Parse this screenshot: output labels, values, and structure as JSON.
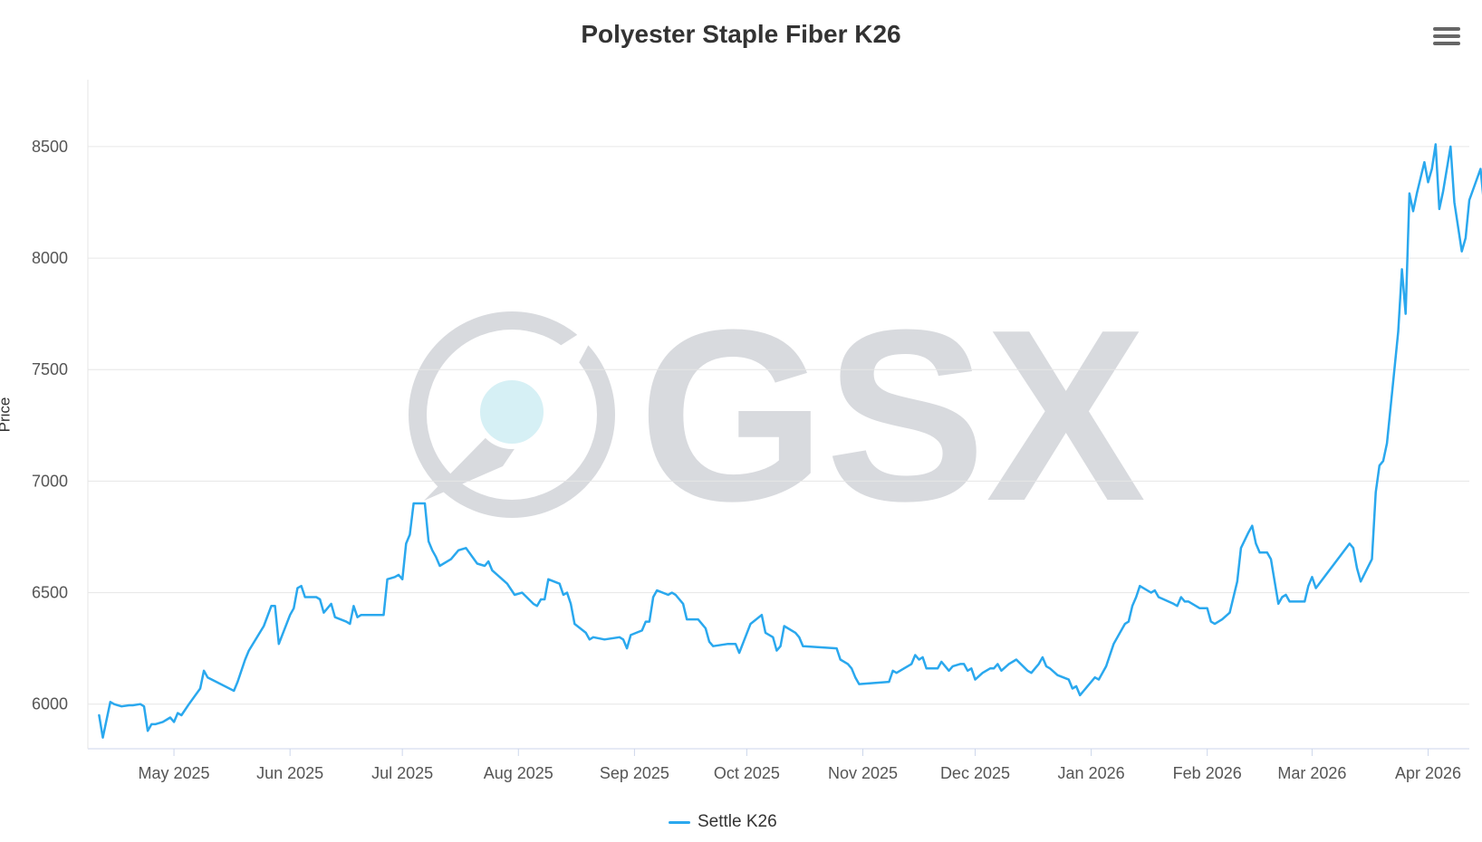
{
  "menu": {
    "icon": "hamburger-menu-icon"
  },
  "chart_data": {
    "type": "line",
    "title": "Polyester Staple Fiber K26",
    "ylabel": "Price",
    "xlabel": "",
    "ylim": [
      5800,
      8800
    ],
    "yticks": [
      6000,
      6500,
      7000,
      7500,
      8000,
      8500
    ],
    "xlim": [
      "2025-04-08",
      "2026-04-12"
    ],
    "xticks": [
      {
        "date": "2025-05-01",
        "label": "May 2025"
      },
      {
        "date": "2025-06-01",
        "label": "Jun 2025"
      },
      {
        "date": "2025-07-01",
        "label": "Jul 2025"
      },
      {
        "date": "2025-08-01",
        "label": "Aug 2025"
      },
      {
        "date": "2025-09-01",
        "label": "Sep 2025"
      },
      {
        "date": "2025-10-01",
        "label": "Oct 2025"
      },
      {
        "date": "2025-11-01",
        "label": "Nov 2025"
      },
      {
        "date": "2025-12-01",
        "label": "Dec 2025"
      },
      {
        "date": "2026-01-01",
        "label": "Jan 2026"
      },
      {
        "date": "2026-02-01",
        "label": "Feb 2026"
      },
      {
        "date": "2026-03-01",
        "label": "Mar 2026"
      },
      {
        "date": "2026-04-01",
        "label": "Apr 2026"
      }
    ],
    "grid": true,
    "legend": "bottom-center",
    "watermark": "GSX",
    "colors": {
      "line": "#2aa8ee",
      "grid": "#e6e6e6",
      "axis": "#ccd6eb",
      "watermark": "#d8dade",
      "watermark_dot": "#d6f0f5"
    },
    "series": [
      {
        "name": "Settle K26",
        "points": [
          [
            "2025-04-11",
            5950
          ],
          [
            "2025-04-12",
            5850
          ],
          [
            "2025-04-14",
            6010
          ],
          [
            "2025-04-15",
            6000
          ],
          [
            "2025-04-17",
            5990
          ],
          [
            "2025-04-19",
            5995
          ],
          [
            "2025-04-20",
            5995
          ],
          [
            "2025-04-22",
            6000
          ],
          [
            "2025-04-23",
            5990
          ],
          [
            "2025-04-24",
            5880
          ],
          [
            "2025-04-25",
            5910
          ],
          [
            "2025-04-26",
            5910
          ],
          [
            "2025-04-28",
            5920
          ],
          [
            "2025-04-29",
            5930
          ],
          [
            "2025-04-30",
            5940
          ],
          [
            "2025-05-01",
            5920
          ],
          [
            "2025-05-02",
            5960
          ],
          [
            "2025-05-03",
            5950
          ],
          [
            "2025-05-05",
            6000
          ],
          [
            "2025-05-08",
            6070
          ],
          [
            "2025-05-09",
            6150
          ],
          [
            "2025-05-10",
            6120
          ],
          [
            "2025-05-17",
            6060
          ],
          [
            "2025-05-18",
            6100
          ],
          [
            "2025-05-20",
            6200
          ],
          [
            "2025-05-21",
            6240
          ],
          [
            "2025-05-25",
            6350
          ],
          [
            "2025-05-27",
            6440
          ],
          [
            "2025-05-28",
            6440
          ],
          [
            "2025-05-29",
            6270
          ],
          [
            "2025-06-01",
            6400
          ],
          [
            "2025-06-02",
            6430
          ],
          [
            "2025-06-03",
            6520
          ],
          [
            "2025-06-04",
            6530
          ],
          [
            "2025-06-05",
            6480
          ],
          [
            "2025-06-08",
            6480
          ],
          [
            "2025-06-09",
            6470
          ],
          [
            "2025-06-10",
            6410
          ],
          [
            "2025-06-12",
            6450
          ],
          [
            "2025-06-13",
            6390
          ],
          [
            "2025-06-16",
            6370
          ],
          [
            "2025-06-17",
            6360
          ],
          [
            "2025-06-18",
            6440
          ],
          [
            "2025-06-19",
            6390
          ],
          [
            "2025-06-20",
            6400
          ],
          [
            "2025-06-22",
            6400
          ],
          [
            "2025-06-26",
            6400
          ],
          [
            "2025-06-27",
            6560
          ],
          [
            "2025-06-29",
            6570
          ],
          [
            "2025-06-30",
            6580
          ],
          [
            "2025-07-01",
            6560
          ],
          [
            "2025-07-02",
            6720
          ],
          [
            "2025-07-03",
            6760
          ],
          [
            "2025-07-04",
            6900
          ],
          [
            "2025-07-07",
            6900
          ],
          [
            "2025-07-08",
            6730
          ],
          [
            "2025-07-09",
            6690
          ],
          [
            "2025-07-10",
            6660
          ],
          [
            "2025-07-11",
            6620
          ],
          [
            "2025-07-14",
            6650
          ],
          [
            "2025-07-15",
            6670
          ],
          [
            "2025-07-16",
            6690
          ],
          [
            "2025-07-18",
            6700
          ],
          [
            "2025-07-21",
            6630
          ],
          [
            "2025-07-23",
            6620
          ],
          [
            "2025-07-24",
            6640
          ],
          [
            "2025-07-25",
            6600
          ],
          [
            "2025-07-29",
            6540
          ],
          [
            "2025-07-31",
            6490
          ],
          [
            "2025-08-02",
            6500
          ],
          [
            "2025-08-05",
            6450
          ],
          [
            "2025-08-06",
            6440
          ],
          [
            "2025-08-07",
            6470
          ],
          [
            "2025-08-08",
            6470
          ],
          [
            "2025-08-09",
            6560
          ],
          [
            "2025-08-12",
            6540
          ],
          [
            "2025-08-13",
            6490
          ],
          [
            "2025-08-14",
            6500
          ],
          [
            "2025-08-15",
            6450
          ],
          [
            "2025-08-16",
            6360
          ],
          [
            "2025-08-19",
            6320
          ],
          [
            "2025-08-20",
            6290
          ],
          [
            "2025-08-21",
            6300
          ],
          [
            "2025-08-24",
            6290
          ],
          [
            "2025-08-28",
            6300
          ],
          [
            "2025-08-29",
            6290
          ],
          [
            "2025-08-30",
            6250
          ],
          [
            "2025-08-31",
            6310
          ],
          [
            "2025-09-03",
            6330
          ],
          [
            "2025-09-04",
            6370
          ],
          [
            "2025-09-05",
            6370
          ],
          [
            "2025-09-06",
            6480
          ],
          [
            "2025-09-07",
            6510
          ],
          [
            "2025-09-10",
            6490
          ],
          [
            "2025-09-11",
            6500
          ],
          [
            "2025-09-12",
            6490
          ],
          [
            "2025-09-14",
            6450
          ],
          [
            "2025-09-15",
            6380
          ],
          [
            "2025-09-18",
            6380
          ],
          [
            "2025-09-19",
            6360
          ],
          [
            "2025-09-20",
            6340
          ],
          [
            "2025-09-21",
            6280
          ],
          [
            "2025-09-22",
            6260
          ],
          [
            "2025-09-26",
            6270
          ],
          [
            "2025-09-27",
            6270
          ],
          [
            "2025-09-28",
            6270
          ],
          [
            "2025-09-29",
            6230
          ],
          [
            "2025-10-02",
            6360
          ],
          [
            "2025-10-05",
            6400
          ],
          [
            "2025-10-06",
            6320
          ],
          [
            "2025-10-08",
            6300
          ],
          [
            "2025-10-09",
            6240
          ],
          [
            "2025-10-10",
            6260
          ],
          [
            "2025-10-11",
            6350
          ],
          [
            "2025-10-14",
            6320
          ],
          [
            "2025-10-15",
            6300
          ],
          [
            "2025-10-16",
            6260
          ],
          [
            "2025-10-25",
            6250
          ],
          [
            "2025-10-26",
            6200
          ],
          [
            "2025-10-28",
            6180
          ],
          [
            "2025-10-29",
            6160
          ],
          [
            "2025-10-30",
            6120
          ],
          [
            "2025-10-31",
            6090
          ],
          [
            "2025-11-08",
            6100
          ],
          [
            "2025-11-09",
            6150
          ],
          [
            "2025-11-10",
            6140
          ],
          [
            "2025-11-12",
            6160
          ],
          [
            "2025-11-14",
            6180
          ],
          [
            "2025-11-15",
            6220
          ],
          [
            "2025-11-16",
            6200
          ],
          [
            "2025-11-17",
            6210
          ],
          [
            "2025-11-18",
            6160
          ],
          [
            "2025-11-21",
            6160
          ],
          [
            "2025-11-22",
            6190
          ],
          [
            "2025-11-24",
            6150
          ],
          [
            "2025-11-25",
            6170
          ],
          [
            "2025-11-27",
            6180
          ],
          [
            "2025-11-28",
            6180
          ],
          [
            "2025-11-29",
            6150
          ],
          [
            "2025-11-30",
            6160
          ],
          [
            "2025-12-01",
            6110
          ],
          [
            "2025-12-03",
            6140
          ],
          [
            "2025-12-05",
            6160
          ],
          [
            "2025-12-06",
            6160
          ],
          [
            "2025-12-07",
            6180
          ],
          [
            "2025-12-08",
            6150
          ],
          [
            "2025-12-10",
            6180
          ],
          [
            "2025-12-12",
            6200
          ],
          [
            "2025-12-15",
            6150
          ],
          [
            "2025-12-16",
            6140
          ],
          [
            "2025-12-18",
            6180
          ],
          [
            "2025-12-19",
            6210
          ],
          [
            "2025-12-20",
            6170
          ],
          [
            "2025-12-21",
            6160
          ],
          [
            "2025-12-23",
            6130
          ],
          [
            "2025-12-26",
            6110
          ],
          [
            "2025-12-27",
            6070
          ],
          [
            "2025-12-28",
            6080
          ],
          [
            "2025-12-29",
            6040
          ],
          [
            "2025-12-30",
            6060
          ],
          [
            "2026-01-02",
            6120
          ],
          [
            "2026-01-03",
            6110
          ],
          [
            "2026-01-05",
            6170
          ],
          [
            "2026-01-07",
            6270
          ],
          [
            "2026-01-10",
            6360
          ],
          [
            "2026-01-11",
            6370
          ],
          [
            "2026-01-12",
            6440
          ],
          [
            "2026-01-13",
            6480
          ],
          [
            "2026-01-14",
            6530
          ],
          [
            "2026-01-17",
            6500
          ],
          [
            "2026-01-18",
            6510
          ],
          [
            "2026-01-19",
            6480
          ],
          [
            "2026-01-23",
            6450
          ],
          [
            "2026-01-24",
            6440
          ],
          [
            "2026-01-25",
            6480
          ],
          [
            "2026-01-26",
            6460
          ],
          [
            "2026-01-27",
            6460
          ],
          [
            "2026-01-30",
            6430
          ],
          [
            "2026-02-01",
            6430
          ],
          [
            "2026-02-02",
            6370
          ],
          [
            "2026-02-03",
            6360
          ],
          [
            "2026-02-05",
            6380
          ],
          [
            "2026-02-07",
            6410
          ],
          [
            "2026-02-09",
            6550
          ],
          [
            "2026-02-10",
            6700
          ],
          [
            "2026-02-12",
            6770
          ],
          [
            "2026-02-13",
            6800
          ],
          [
            "2026-02-14",
            6720
          ],
          [
            "2026-02-15",
            6680
          ],
          [
            "2026-02-17",
            6680
          ],
          [
            "2026-02-18",
            6650
          ],
          [
            "2026-02-20",
            6450
          ],
          [
            "2026-02-21",
            6480
          ],
          [
            "2026-02-22",
            6490
          ],
          [
            "2026-02-23",
            6460
          ],
          [
            "2026-02-27",
            6460
          ],
          [
            "2026-02-28",
            6530
          ],
          [
            "2026-03-01",
            6570
          ],
          [
            "2026-03-02",
            6520
          ],
          [
            "2026-03-11",
            6720
          ],
          [
            "2026-03-12",
            6700
          ],
          [
            "2026-03-13",
            6610
          ],
          [
            "2026-03-14",
            6550
          ],
          [
            "2026-03-17",
            6650
          ],
          [
            "2026-03-18",
            6950
          ],
          [
            "2026-03-19",
            7070
          ],
          [
            "2026-03-20",
            7090
          ],
          [
            "2026-03-21",
            7170
          ],
          [
            "2026-03-24",
            7670
          ],
          [
            "2026-03-25",
            7950
          ],
          [
            "2026-03-26",
            7750
          ],
          [
            "2026-03-27",
            8290
          ],
          [
            "2026-03-28",
            8210
          ],
          [
            "2026-03-29",
            8290
          ],
          [
            "2026-03-31",
            8430
          ],
          [
            "2026-04-01",
            8340
          ],
          [
            "2026-04-02",
            8400
          ],
          [
            "2026-04-03",
            8510
          ],
          [
            "2026-04-04",
            8220
          ],
          [
            "2026-04-05",
            8300
          ],
          [
            "2026-04-07",
            8500
          ],
          [
            "2026-04-08",
            8250
          ],
          [
            "2026-04-10",
            8030
          ],
          [
            "2026-04-11",
            8090
          ],
          [
            "2026-04-12",
            8260
          ],
          [
            "2026-04-15",
            8400
          ],
          [
            "2026-04-16",
            8230
          ],
          [
            "2026-04-17",
            8180
          ],
          [
            "2026-04-18",
            8090
          ],
          [
            "2026-04-19",
            8290
          ],
          [
            "2026-04-20",
            8420
          ],
          [
            "2026-04-23",
            8750
          ],
          [
            "2026-04-24",
            8460
          ]
        ]
      }
    ]
  }
}
